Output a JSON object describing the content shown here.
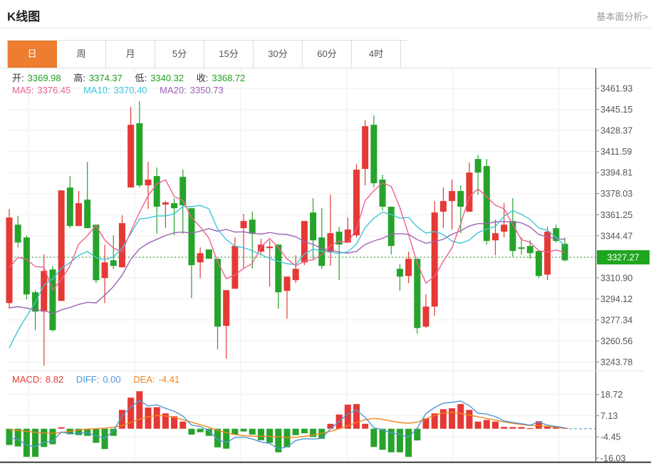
{
  "header": {
    "title": "K线图",
    "link_label": "基本面分析>"
  },
  "tabs": [
    {
      "label": "日",
      "active": true
    },
    {
      "label": "周",
      "active": false
    },
    {
      "label": "月",
      "active": false
    },
    {
      "label": "5分",
      "active": false
    },
    {
      "label": "15分",
      "active": false
    },
    {
      "label": "30分",
      "active": false
    },
    {
      "label": "60分",
      "active": false
    },
    {
      "label": "4时",
      "active": false
    }
  ],
  "readouts": {
    "ohlc": [
      {
        "label": "开:",
        "value": "3369.98"
      },
      {
        "label": "高:",
        "value": "3374.37"
      },
      {
        "label": "低:",
        "value": "3340.32"
      },
      {
        "label": "收:",
        "value": "3368.72"
      }
    ],
    "ma": [
      {
        "label": "MA5:",
        "value": "3376.45"
      },
      {
        "label": "MA10:",
        "value": "3370.40"
      },
      {
        "label": "MA20:",
        "value": "3350.73"
      }
    ],
    "macd": [
      {
        "label": "MACD:",
        "value": "8.82"
      },
      {
        "label": "DIFF:",
        "value": "0.00"
      },
      {
        "label": "DEA:",
        "value": "-4.41"
      }
    ]
  },
  "colors": {
    "up": "#e53935",
    "down": "#26a32b",
    "tab_active_bg": "#ed7d31",
    "ma5": "#ee5f8e",
    "ma10": "#3ec6d8",
    "ma20": "#9d64b5",
    "ohlc_value": "#21a021",
    "diff_line": "#4f97d6",
    "dea_line": "#f0861a",
    "current_price_bg": "#1fa61f",
    "current_price_line": "#2ca22c",
    "axis_text": "#555555",
    "grid": "#efefef",
    "axis_line": "#444444"
  },
  "chart_data": [
    {
      "type": "candlestick",
      "title": "K线图 (日K)",
      "legend": [
        "MA5",
        "MA10",
        "MA20"
      ],
      "grid": true,
      "y_axis_side": "right",
      "ylim": [
        3236.8,
        3478.4
      ],
      "y_ticks": [
        3461.93,
        3445.15,
        3428.37,
        3411.59,
        3394.81,
        3378.03,
        3361.25,
        3344.47,
        3310.9,
        3294.12,
        3277.34,
        3260.56,
        3243.78
      ],
      "hidden_grid_tick": 3327.69,
      "current_price": 3327.27,
      "ma_periods": [
        5,
        10,
        20
      ],
      "ma_warmup_closes": [
        3322,
        3318,
        3316,
        3320,
        3324,
        3319,
        3315,
        3321,
        3317,
        3318,
        3200,
        3185,
        3172,
        3180,
        3218,
        3298,
        3306,
        3312,
        3320
      ],
      "candles_format": [
        "open",
        "high",
        "low",
        "close"
      ],
      "candles": [
        [
          3290.8,
          3365.9,
          3286.3,
          3359.0
        ],
        [
          3353.3,
          3360.2,
          3335.2,
          3339.1
        ],
        [
          3343.1,
          3344.8,
          3293.7,
          3297.7
        ],
        [
          3299.4,
          3301.1,
          3269.2,
          3284.0
        ],
        [
          3284.0,
          3329.5,
          3240.8,
          3316.4
        ],
        [
          3317.6,
          3320.4,
          3268.0,
          3269.2
        ],
        [
          3292.5,
          3380.6,
          3292.5,
          3380.6
        ],
        [
          3382.9,
          3392.0,
          3350.5,
          3352.2
        ],
        [
          3352.2,
          3380.1,
          3352.2,
          3370.4
        ],
        [
          3373.2,
          3403.4,
          3350.5,
          3350.5
        ],
        [
          3353.3,
          3353.3,
          3306.7,
          3309.0
        ],
        [
          3310.7,
          3337.4,
          3290.8,
          3323.2
        ],
        [
          3324.9,
          3344.8,
          3318.1,
          3320.4
        ],
        [
          3319.3,
          3360.7,
          3319.3,
          3354.5
        ],
        [
          3382.9,
          3447.2,
          3382.9,
          3432.9
        ],
        [
          3434.1,
          3451.7,
          3382.9,
          3384.6
        ],
        [
          3384.6,
          3403.4,
          3365.9,
          3389.2
        ],
        [
          3392.0,
          3398.8,
          3346.0,
          3367.6
        ],
        [
          3369.3,
          3372.1,
          3350.5,
          3371.0
        ],
        [
          3370.4,
          3374.4,
          3344.8,
          3366.4
        ],
        [
          3391.4,
          3397.1,
          3346.0,
          3368.7
        ],
        [
          3366.4,
          3366.4,
          3294.8,
          3321.0
        ],
        [
          3323.2,
          3335.2,
          3310.7,
          3330.6
        ],
        [
          3333.5,
          3333.5,
          3326.1,
          3326.1
        ],
        [
          3326.1,
          3326.1,
          3253.8,
          3272.0
        ],
        [
          3272.6,
          3301.1,
          3246.4,
          3301.1
        ],
        [
          3302.2,
          3343.1,
          3302.2,
          3336.3
        ],
        [
          3350.5,
          3361.9,
          3318.1,
          3356.2
        ],
        [
          3357.3,
          3363.6,
          3318.1,
          3346.0
        ],
        [
          3331.8,
          3342.0,
          3328.9,
          3337.4
        ],
        [
          3334.6,
          3340.8,
          3303.9,
          3335.8
        ],
        [
          3337.4,
          3337.4,
          3286.3,
          3299.4
        ],
        [
          3300.5,
          3311.9,
          3278.3,
          3311.9
        ],
        [
          3309.0,
          3328.9,
          3306.7,
          3318.1
        ],
        [
          3323.2,
          3356.2,
          3321.0,
          3356.2
        ],
        [
          3363.0,
          3374.4,
          3326.1,
          3340.8
        ],
        [
          3343.1,
          3366.4,
          3318.1,
          3320.4
        ],
        [
          3331.8,
          3377.2,
          3320.4,
          3346.5
        ],
        [
          3347.7,
          3351.6,
          3309.0,
          3337.4
        ],
        [
          3339.1,
          3359.0,
          3339.1,
          3349.4
        ],
        [
          3344.8,
          3401.7,
          3343.1,
          3397.1
        ],
        [
          3397.7,
          3436.9,
          3384.6,
          3431.8
        ],
        [
          3432.9,
          3440.3,
          3382.9,
          3386.3
        ],
        [
          3389.2,
          3393.1,
          3364.7,
          3367.6
        ],
        [
          3367.6,
          3367.6,
          3329.5,
          3336.3
        ],
        [
          3318.1,
          3322.1,
          3300.5,
          3311.9
        ],
        [
          3312.4,
          3331.8,
          3306.7,
          3326.1
        ],
        [
          3326.1,
          3326.1,
          3266.3,
          3270.9
        ],
        [
          3272.0,
          3297.7,
          3270.9,
          3288.0
        ],
        [
          3288.0,
          3372.1,
          3280.6,
          3363.0
        ],
        [
          3363.6,
          3382.9,
          3350.5,
          3372.1
        ],
        [
          3372.1,
          3389.2,
          3349.4,
          3380.1
        ],
        [
          3380.1,
          3384.6,
          3346.5,
          3367.6
        ],
        [
          3363.6,
          3402.8,
          3363.6,
          3394.8
        ],
        [
          3405.6,
          3409.0,
          3377.2,
          3394.8
        ],
        [
          3400.0,
          3405.6,
          3337.4,
          3340.3
        ],
        [
          3340.8,
          3357.3,
          3328.9,
          3346.5
        ],
        [
          3347.7,
          3370.4,
          3343.1,
          3353.3
        ],
        [
          3356.2,
          3374.4,
          3327.8,
          3332.3
        ],
        [
          3335.2,
          3343.1,
          3329.5,
          3334.0
        ],
        [
          3336.3,
          3340.8,
          3326.1,
          3330.6
        ],
        [
          3332.3,
          3332.3,
          3310.7,
          3312.4
        ],
        [
          3313.5,
          3351.6,
          3309.0,
          3347.7
        ],
        [
          3350.5,
          3353.3,
          3339.1,
          3340.3
        ],
        [
          3338.0,
          3343.1,
          3323.8,
          3324.9
        ]
      ]
    },
    {
      "type": "bar",
      "title": "MACD",
      "y_ticks": [
        18.72,
        7.13,
        -4.45,
        -16.03
      ],
      "readout": {
        "MACD": 8.82,
        "DIFF": 0.0,
        "DEA": -4.41
      },
      "macd": [
        -8.9,
        -9.7,
        -15.4,
        -15.4,
        -10.0,
        -8.5,
        0.8,
        -3.0,
        -3.5,
        -3.9,
        -7.7,
        -11.1,
        -3.9,
        10.3,
        17.0,
        20.5,
        11.6,
        11.8,
        8.4,
        6.8,
        3.9,
        -3.2,
        -1.9,
        -3.9,
        -10.2,
        -10.9,
        -3.2,
        -1.5,
        -3.2,
        -6.3,
        -7.7,
        -12.9,
        -10.2,
        -3.5,
        -2.5,
        -4.5,
        -5.5,
        2.7,
        7.8,
        13.2,
        13.5,
        2.7,
        -10.0,
        -11.5,
        -12.9,
        -12.9,
        -15.4,
        -6.4,
        5.7,
        8.4,
        10.7,
        11.2,
        13.5,
        10.3,
        3.9,
        4.8,
        3.9,
        1.0,
        0.9,
        0.9,
        0.3,
        4.1,
        1.3,
        0.9,
        0.5
      ],
      "dea": [
        -0.6,
        -0.9,
        -1.4,
        -2.0,
        -2.4,
        -2.5,
        -2.1,
        -1.4,
        -0.7,
        -0.2,
        0.0,
        0.3,
        0.8,
        1.8,
        3.4,
        5.2,
        6.6,
        7.2,
        7.0,
        6.2,
        5.0,
        3.6,
        2.2,
        0.8,
        -0.8,
        -2.2,
        -3.2,
        -3.8,
        -4.0,
        -4.1,
        -4.2,
        -4.5,
        -4.8,
        -4.7,
        -4.2,
        -3.4,
        -2.5,
        -1.4,
        0.0,
        1.6,
        3.4,
        4.9,
        5.6,
        5.2,
        4.2,
        3.4,
        3.0,
        3.6,
        5.4,
        7.4,
        8.6,
        8.9,
        8.4,
        7.5,
        6.5,
        5.6,
        4.7,
        3.8,
        3.0,
        2.3,
        1.8,
        1.7,
        1.3,
        0.8,
        0.2
      ],
      "diff_formula": "diff[i] = dea[i] + macd[i]/2"
    }
  ]
}
